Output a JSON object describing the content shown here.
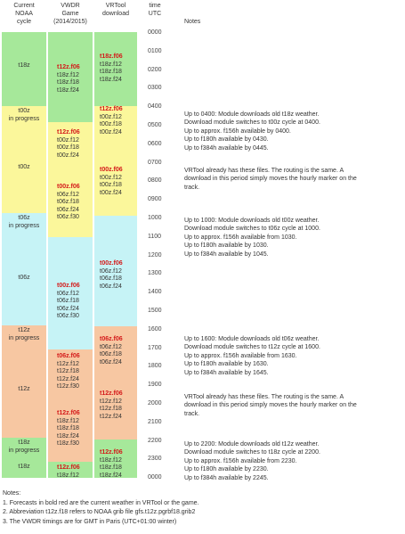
{
  "headers": {
    "cycle": [
      "Current",
      "NOAA",
      "cycle"
    ],
    "vwdr": [
      "VWDR",
      "Game",
      "(2014/2015)"
    ],
    "vrtool": [
      "VRTool",
      "download"
    ],
    "time": [
      "time",
      "UTC"
    ],
    "notes": "Notes"
  },
  "cycle_labels": {
    "c18": "t18z",
    "p00": [
      "t00z",
      "in progress"
    ],
    "c00": "t00z",
    "p06": [
      "t06z",
      "in progress"
    ],
    "c06": "t06z",
    "p12": [
      "t12z",
      "in progress"
    ],
    "c12": "t12z",
    "p18": [
      "t18z",
      "in progress"
    ],
    "c18b": "t18z"
  },
  "game_stacks": {
    "s1": [
      {
        "t": "t12z.f06",
        "red": true
      },
      {
        "t": "t18z.f12"
      },
      {
        "t": "t18z.f18"
      },
      {
        "t": "t18z.f24"
      }
    ],
    "s2": [
      {
        "t": "t12z.f06",
        "red": true
      },
      {
        "t": "t00z.f12"
      },
      {
        "t": "t00z.f18"
      },
      {
        "t": "t00z.f24"
      }
    ],
    "s3": [
      {
        "t": "t00z.f06",
        "red": true
      },
      {
        "t": "t06z.f12"
      },
      {
        "t": "t06z.f18"
      },
      {
        "t": "t06z.f24"
      },
      {
        "t": "t06z.f30"
      }
    ],
    "s4": [
      {
        "t": "t00z.f06",
        "red": true
      },
      {
        "t": "t06z.f12"
      },
      {
        "t": "t06z.f18"
      },
      {
        "t": "t06z.f24"
      },
      {
        "t": "t06z.f30"
      }
    ],
    "s5": [
      {
        "t": "t06z.f06",
        "red": true
      },
      {
        "t": "t12z.f12"
      },
      {
        "t": "t12z.f18"
      },
      {
        "t": "t12z.f24"
      },
      {
        "t": "t12z.f30"
      }
    ],
    "s6": [
      {
        "t": "t12z.f06",
        "red": true
      },
      {
        "t": "t18z.f12"
      },
      {
        "t": "t18z.f18"
      },
      {
        "t": "t18z.f24"
      },
      {
        "t": "t18z.f30"
      }
    ],
    "s7": [
      {
        "t": "t12z.f06",
        "red": true
      },
      {
        "t": "t18z.f12"
      }
    ]
  },
  "vrtool_stacks": {
    "v1": [
      {
        "t": "t18z.f06",
        "red": true
      },
      {
        "t": "t18z.f12"
      },
      {
        "t": "t18z.f18"
      },
      {
        "t": "t18z.f24"
      }
    ],
    "v2": [
      {
        "t": "t12z.f06",
        "red": true
      },
      {
        "t": "t00z.f12"
      },
      {
        "t": "t00z.f18"
      },
      {
        "t": "t00z.f24"
      }
    ],
    "v3": [
      {
        "t": "t00z.f06",
        "red": true
      },
      {
        "t": "t00z.f12"
      },
      {
        "t": "t00z.f18"
      },
      {
        "t": "t00z.f24"
      }
    ],
    "v4": [
      {
        "t": "t00z.f06",
        "red": true
      },
      {
        "t": "t06z.f12"
      },
      {
        "t": "t06z.f18"
      },
      {
        "t": "t06z.f24"
      }
    ],
    "v5": [
      {
        "t": "t06z.f06",
        "red": true
      },
      {
        "t": "t06z.f12"
      },
      {
        "t": "t06z.f18"
      },
      {
        "t": "t06z.f24"
      }
    ],
    "v6": [
      {
        "t": "t12z.f06",
        "red": true
      },
      {
        "t": "t12z.f12"
      },
      {
        "t": "t12z.f18"
      },
      {
        "t": "t12z.f24"
      }
    ],
    "v7": [
      {
        "t": "t12z.f06",
        "red": true
      },
      {
        "t": "t18z.f12"
      },
      {
        "t": "t18z.f18"
      },
      {
        "t": "t18z.f24"
      }
    ]
  },
  "times": [
    "0000",
    "0100",
    "0200",
    "0300",
    "0400",
    "0500",
    "0600",
    "0700",
    "0800",
    "0900",
    "1000",
    "1100",
    "1200",
    "1300",
    "1400",
    "1500",
    "1600",
    "1700",
    "1800",
    "1900",
    "2000",
    "2100",
    "2200",
    "2300",
    "0000"
  ],
  "notes": {
    "n1": [
      "Up to 0400: Module downloads old t18z weather.",
      "Download module switches to t00z cycle at 0400.",
      "Up to approx. f156h available by 0400.",
      "Up to f180h available by 0430.",
      "Up to f384h available by 0445."
    ],
    "n2": [
      "VRTool already has these files. The routing is the same. A",
      "download in this period simply moves the hourly marker on the",
      "track."
    ],
    "n3": [
      "Up to 1000: Module downloads old t00z weather.",
      "Download module switches to t06z cycle at 1000.",
      "Up to approx. f156h available from 1030.",
      "Up to f180h available by 1030.",
      "Up to f384h available by 1045."
    ],
    "n4": [
      "Up to 1600: Module downloads old t06z weather.",
      "Download module switches to t12z cycle at 1600.",
      "Up to approx. f156h available from 1630.",
      "Up to f180h available by 1630.",
      "Up to f384h available by 1645."
    ],
    "n5": [
      "VRTool already has these files. The routing is the same. A",
      "download in this period simply moves the hourly marker on the",
      "track."
    ],
    "n6": [
      "Up to 2200: Module downloads old t12z weather.",
      "Download module switches to t18z cycle at 2200.",
      "Up to approx. f156h available from 2230.",
      "Up to f180h available by 2230.",
      "Up to f384h available by 2245."
    ]
  },
  "footnotes": [
    "Notes:",
    "1. Forecasts in bold red are the current weather in VRTool or the game.",
    "2. Abbreviation t12z.f18 refers to NOAA grib file gfs.t12z.pgrbf18.grib2",
    "3. The VWDR timings are for GMT in Paris (UTC+01:00 winter)"
  ]
}
